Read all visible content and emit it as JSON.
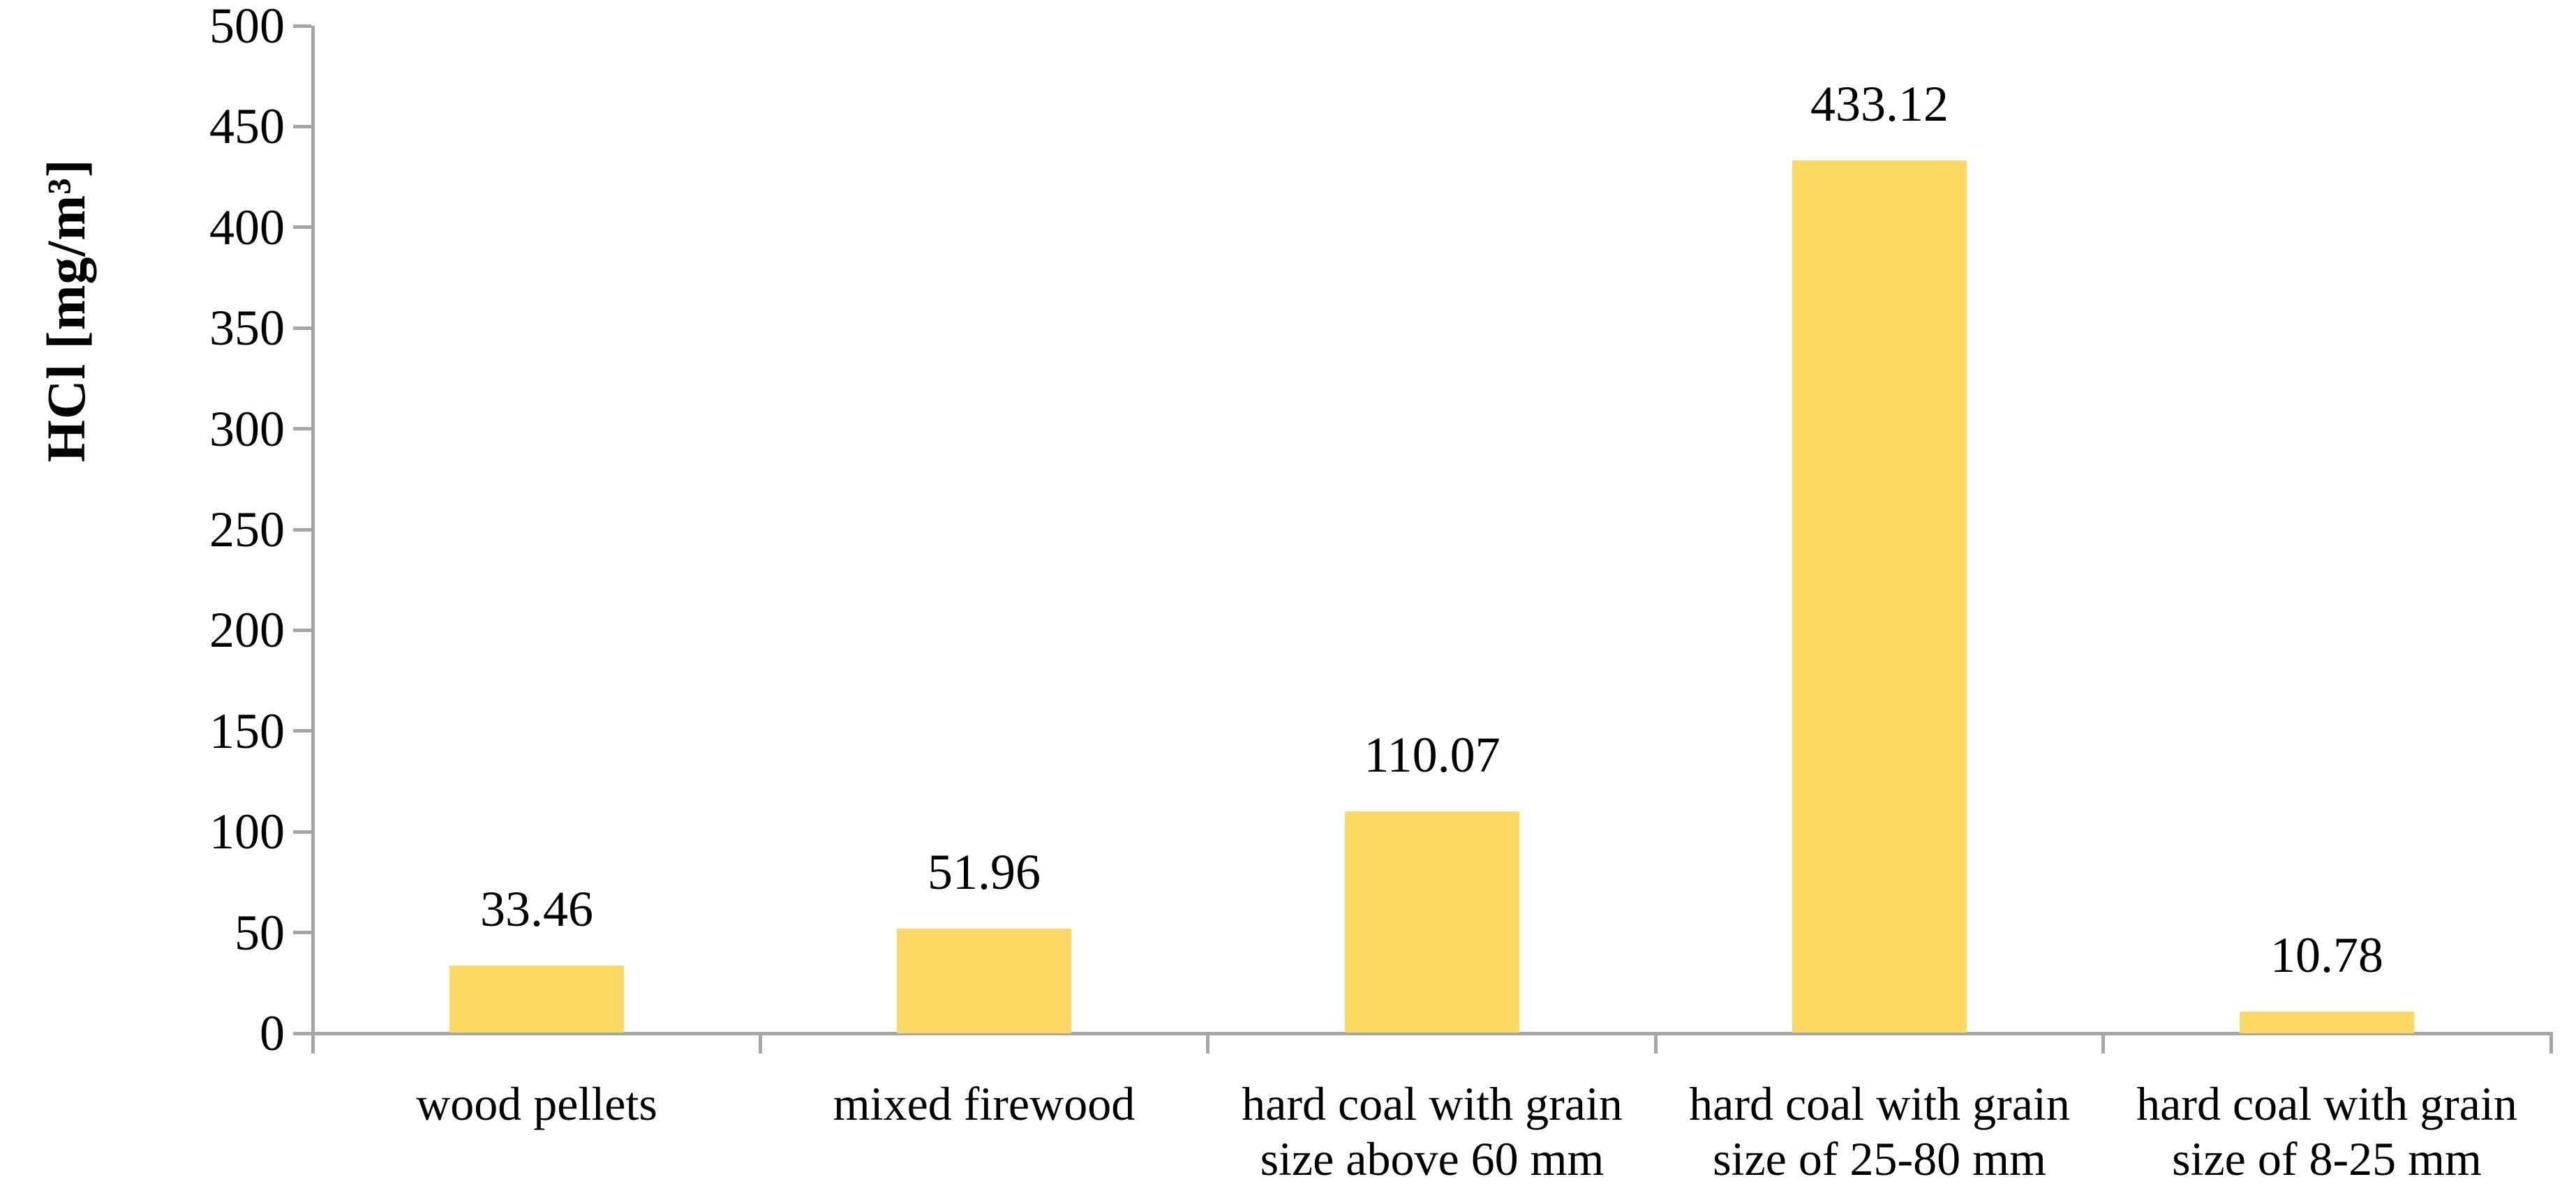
{
  "chart_data": {
    "type": "bar",
    "title": "",
    "xlabel": "",
    "ylabel": "HCl [mg/m³]",
    "categories": [
      "wood pellets",
      "mixed firewood",
      "hard coal with grain\nsize above 60 mm",
      "hard coal with grain\nsize of 25-80 mm",
      "hard coal with grain\nsize of 8-25 mm"
    ],
    "values": [
      33.46,
      51.96,
      110.07,
      433.12,
      10.78
    ],
    "value_labels": [
      "33.46",
      "51.96",
      "110.07",
      "433.12",
      "10.78"
    ],
    "ylim": [
      0,
      500
    ],
    "ytick_step": 50,
    "ytick_labels": [
      "0",
      "50",
      "100",
      "150",
      "200",
      "250",
      "300",
      "350",
      "400",
      "450",
      "500"
    ],
    "grid": false,
    "legend": null,
    "bar_color": "#FCD964",
    "axis_color": "#A6A6A6",
    "text_color": "#000000"
  }
}
